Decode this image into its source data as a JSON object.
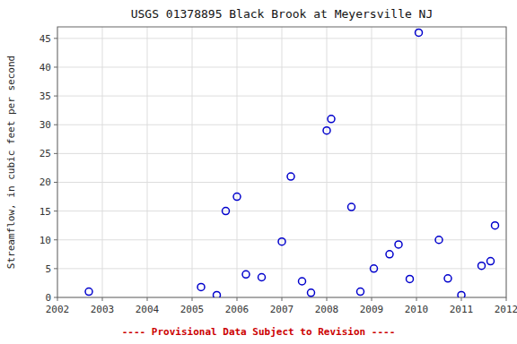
{
  "chart_data": {
    "type": "scatter",
    "title": "USGS 01378895 Black Brook at Meyersville NJ",
    "y_label": "Streamflow, in cubic feet per second",
    "footnote": "---- Provisional Data Subject to Revision ----",
    "x": [
      2002.7,
      2005.2,
      2005.55,
      2005.75,
      2006.0,
      2006.2,
      2006.55,
      2007.0,
      2007.2,
      2007.45,
      2007.65,
      2008.0,
      2008.1,
      2008.55,
      2008.75,
      2009.05,
      2009.4,
      2009.6,
      2009.85,
      2010.05,
      2010.5,
      2010.7,
      2011.0,
      2011.45,
      2011.65,
      2011.75
    ],
    "values": [
      1.0,
      1.8,
      0.4,
      15.0,
      17.5,
      4.0,
      3.5,
      9.7,
      21.0,
      2.8,
      0.8,
      29.0,
      31.0,
      15.7,
      1.0,
      5.0,
      7.5,
      9.2,
      3.2,
      46.0,
      10.0,
      3.3,
      0.4,
      5.5,
      6.3,
      12.5
    ],
    "color": "#0000cc",
    "marker": "circle",
    "xlim": [
      2002,
      2012
    ],
    "ylim": [
      0,
      47
    ],
    "xticks": [
      2002,
      2003,
      2004,
      2005,
      2006,
      2007,
      2008,
      2009,
      2010,
      2011,
      2012
    ],
    "yticks": [
      0,
      5,
      10,
      15,
      20,
      25,
      30,
      35,
      40,
      45
    ],
    "grid": true
  }
}
